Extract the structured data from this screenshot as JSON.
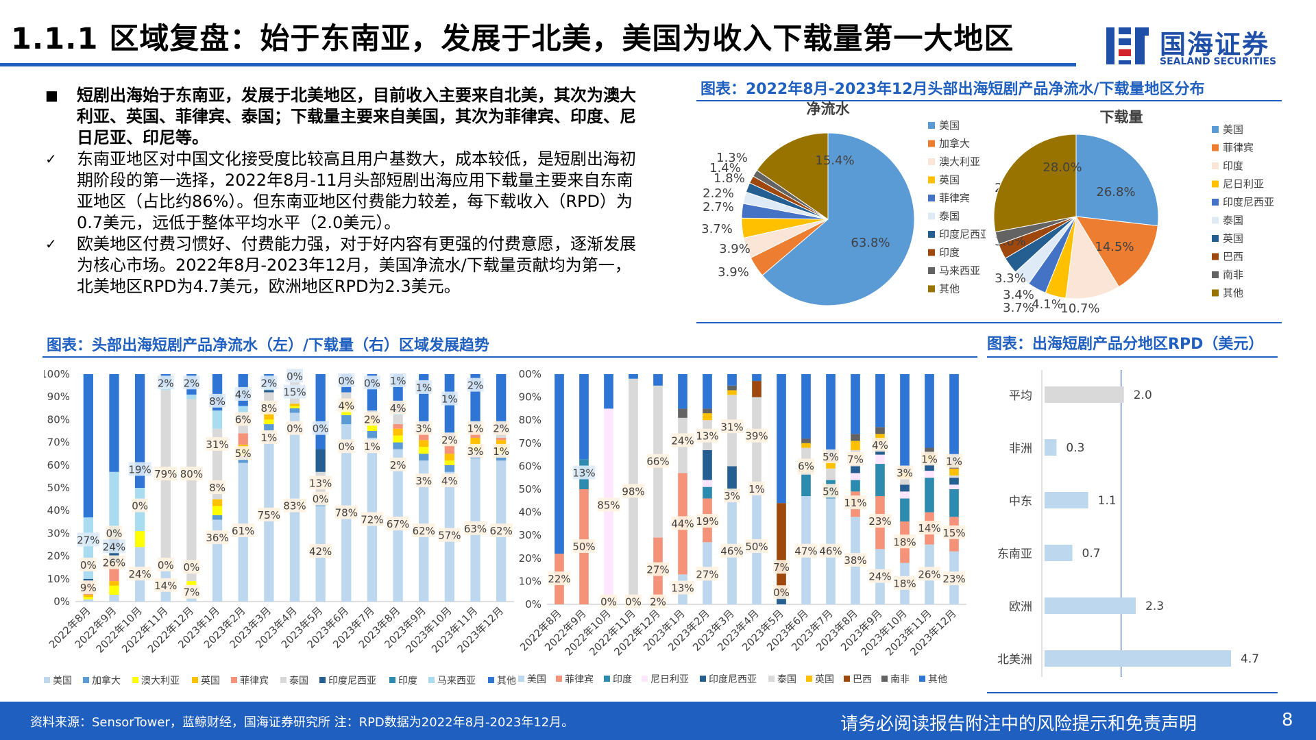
{
  "title": "1.1.1 区域复盘：始于东南亚，发展于北美，美国为收入下载量第一大地区",
  "logo": {
    "cn": "国海证券",
    "en": "SEALAND SECURITIES"
  },
  "bullets": [
    {
      "marker": "■",
      "bold": true,
      "text": "短剧出海始于东南亚，发展于北美地区，目前收入主要来自北美，其次为澳大利亚、英国、菲律宾、泰国；下载量主要来自美国，其次为菲律宾、印度、尼日尼亚、印尼等。"
    },
    {
      "marker": "✓",
      "bold": false,
      "text": "东南亚地区对中国文化接受度比较高且用户基数大，成本较低，是短剧出海初期阶段的第一选择，2022年8月-11月头部短剧出海应用下载量主要来自东南亚地区（占比约86%）。但东南亚地区付费能力较差，每下载收入（RPD）为0.7美元，远低于整体平均水平（2.0美元）。"
    },
    {
      "marker": "✓",
      "bold": false,
      "text": "欧美地区付费习惯好、付费能力强，对于好内容有更强的付费意愿，逐渐发展为核心市场。2022年8月-2023年12月，美国净流水/下载量贡献均为第一，北美地区RPD为4.7美元，欧洲地区RPD为2.3美元。"
    }
  ],
  "pie_section_title": "图表：2022年8月-2023年12月头部出海短剧产品净流水/下载量地区分布",
  "trend_section_title": "图表：头部出海短剧产品净流水（左）/下载量（右）区域发展趋势",
  "rpd_section_title": "图表：出海短剧产品分地区RPD（美元）",
  "footer": {
    "source": "资料来源：SensorTower，蓝鲸财经，国海证券研究所   注：RPD数据为2022年8月-2023年12月。",
    "disclaimer": "请务必阅读报告附注中的风险提示和免责声明",
    "page": "8"
  },
  "chart_data": [
    {
      "type": "pie",
      "title": "净流水",
      "labels": [
        "美国",
        "加拿大",
        "澳大利亚",
        "英国",
        "菲律宾",
        "泰国",
        "印度尼西亚",
        "印度",
        "马来西亚",
        "其他"
      ],
      "values": [
        63.8,
        3.9,
        3.9,
        3.7,
        2.7,
        2.2,
        1.8,
        1.4,
        1.3,
        15.4
      ],
      "colors": [
        "#5B9BD5",
        "#ED7D31",
        "#FBE5D6",
        "#FFC000",
        "#4472C4",
        "#DEEBF7",
        "#255E91",
        "#9E480E",
        "#636363",
        "#997300"
      ],
      "legend": "right"
    },
    {
      "type": "pie",
      "title": "下载量",
      "labels": [
        "美国",
        "菲律宾",
        "印度",
        "尼日利亚",
        "印度尼西亚",
        "泰国",
        "英国",
        "巴西",
        "南非",
        "其他"
      ],
      "values": [
        26.8,
        14.5,
        10.7,
        4.1,
        3.7,
        3.4,
        3.3,
        3.0,
        2.5,
        28.0
      ],
      "colors": [
        "#5B9BD5",
        "#ED7D31",
        "#FBE5D6",
        "#FFC000",
        "#4472C4",
        "#DEEBF7",
        "#255E91",
        "#9E480E",
        "#636363",
        "#997300"
      ],
      "legend": "right"
    },
    {
      "type": "bar",
      "stacked": true,
      "percent": true,
      "categories": [
        "2022年8月",
        "2022年9月",
        "2022年10月",
        "2022年11月",
        "2022年12月",
        "2023年1月",
        "2023年2月",
        "2023年3月",
        "2023年4月",
        "2023年5月",
        "2023年6月",
        "2023年7月",
        "2023年8月",
        "2023年9月",
        "2023年10月",
        "2023年11月",
        "2023年12月"
      ],
      "ylim": [
        0,
        100
      ],
      "yticks": [
        "0%",
        "10%",
        "20%",
        "30%",
        "40%",
        "50%",
        "60%",
        "70%",
        "80%",
        "90%",
        "100%"
      ],
      "legend": "bottom",
      "series": [
        {
          "name": "美国",
          "color": "#BDD7EE",
          "values": [
            1,
            3,
            24,
            14,
            7,
            36,
            61,
            75,
            83,
            42,
            78,
            72,
            67,
            62,
            57,
            63,
            62
          ]
        },
        {
          "name": "加拿大",
          "color": "#5B9BD5",
          "values": [
            0,
            0,
            0,
            0,
            0,
            2,
            3,
            3,
            2,
            2,
            4,
            3,
            3,
            3,
            3,
            3,
            3
          ]
        },
        {
          "name": "澳大利亚",
          "color": "#FFFF00",
          "values": [
            1,
            4,
            7,
            0,
            2,
            4,
            3,
            2,
            1,
            0,
            3,
            3,
            3,
            3,
            2,
            3,
            3
          ]
        },
        {
          "name": "英国",
          "color": "#FFC000",
          "values": [
            1,
            2,
            0,
            0,
            0,
            3,
            2,
            3,
            1,
            0,
            3,
            3,
            3,
            3,
            3,
            3,
            3
          ]
        },
        {
          "name": "菲律宾",
          "color": "#F4937A",
          "values": [
            6,
            8,
            0,
            0,
            0,
            0,
            5,
            1,
            0,
            0,
            0,
            1,
            2,
            3,
            4,
            3,
            1
          ]
        },
        {
          "name": "泰国",
          "color": "#D9D9D9",
          "values": [
            0,
            0,
            0,
            79,
            80,
            31,
            6,
            8,
            15,
            13,
            4,
            2,
            4,
            3,
            2,
            1,
            2
          ]
        },
        {
          "name": "印度尼西亚",
          "color": "#255E91",
          "values": [
            1,
            11,
            0,
            0,
            0,
            0,
            2,
            1,
            0,
            10,
            0,
            0,
            0,
            0,
            0,
            0,
            0
          ]
        },
        {
          "name": "印度",
          "color": "#2E8BB0",
          "values": [
            0,
            5,
            0,
            0,
            0,
            0,
            0,
            0,
            0,
            0,
            0,
            0,
            0,
            0,
            0,
            0,
            0
          ]
        },
        {
          "name": "马来西亚",
          "color": "#A9DCF0",
          "values": [
            27,
            24,
            19,
            2,
            2,
            8,
            4,
            2,
            0,
            0,
            0,
            0,
            1,
            1,
            1,
            2,
            2
          ]
        },
        {
          "name": "其他",
          "color": "#2F75D6",
          "values": [
            63,
            43,
            50,
            5,
            9,
            16,
            14,
            5,
            -2,
            33,
            8,
            16,
            17,
            22,
            28,
            22,
            24
          ]
        }
      ],
      "data_labels": [
        "0%",
        "9%",
        "24%",
        "27%",
        "26%",
        "0%",
        "19%",
        "24%",
        "0%",
        "14%",
        "79%",
        "0%",
        "2%",
        "7%",
        "80%",
        "0%",
        "2%",
        "36%",
        "8%",
        "31%",
        "8%",
        "61%",
        "5%",
        "6%",
        "4%",
        "75%",
        "1%",
        "8%",
        "2%",
        "83%",
        "0%",
        "15%",
        "0%",
        "42%",
        "0%",
        "13%",
        "0%",
        "78%",
        "0%",
        "4%",
        "0%",
        "72%",
        "1%",
        "2%",
        "0%",
        "67%",
        "2%",
        "4%",
        "1%",
        "62%",
        "3%",
        "3%",
        "1%",
        "57%",
        "4%",
        "2%",
        "1%",
        "63%",
        "3%",
        "1%",
        "2%",
        "62%",
        "1%",
        "2%"
      ]
    },
    {
      "type": "bar",
      "stacked": true,
      "percent": true,
      "categories": [
        "2022年8月",
        "2022年9月",
        "2022年10月",
        "2022年11月",
        "2022年12月",
        "2023年1月",
        "2023年2月",
        "2023年3月",
        "2023年4月",
        "2023年5月",
        "2023年6月",
        "2023年7月",
        "2023年8月",
        "2023年9月",
        "2023年10月",
        "2023年11月",
        "2023年12月"
      ],
      "ylim": [
        0,
        100
      ],
      "yticks": [
        "0%",
        "10%",
        "20%",
        "30%",
        "40%",
        "50%",
        "60%",
        "70%",
        "80%",
        "90%",
        "100%"
      ],
      "legend": "bottom",
      "series": [
        {
          "name": "美国",
          "color": "#BDD7EE",
          "values": [
            0,
            0,
            0,
            0,
            2,
            13,
            27,
            46,
            50,
            0,
            47,
            46,
            38,
            24,
            18,
            26,
            23
          ]
        },
        {
          "name": "菲律宾",
          "color": "#F4937A",
          "values": [
            22,
            50,
            0,
            0,
            27,
            44,
            19,
            0,
            0,
            0,
            0,
            0,
            11,
            23,
            18,
            14,
            15
          ]
        },
        {
          "name": "印度",
          "color": "#2E8BB0",
          "values": [
            0,
            13,
            0,
            0,
            0,
            0,
            5,
            0,
            0,
            0,
            15,
            8,
            5,
            14,
            10,
            15,
            12
          ]
        },
        {
          "name": "尼日利亚",
          "color": "#FFE6FF",
          "values": [
            0,
            0,
            85,
            0,
            0,
            0,
            3,
            3,
            1,
            0,
            0,
            0,
            3,
            4,
            3,
            3,
            2
          ]
        },
        {
          "name": "印度尼西亚",
          "color": "#255E91",
          "values": [
            0,
            0,
            0,
            0,
            0,
            0,
            13,
            11,
            0,
            4,
            0,
            0,
            3,
            2,
            3,
            3,
            3
          ]
        },
        {
          "name": "泰国",
          "color": "#D9D9D9",
          "values": [
            0,
            0,
            0,
            98,
            66,
            24,
            13,
            31,
            39,
            0,
            6,
            5,
            7,
            4,
            3,
            1,
            1
          ]
        },
        {
          "name": "英国",
          "color": "#FFC000",
          "values": [
            0,
            0,
            0,
            0,
            0,
            0,
            3,
            2,
            0,
            0,
            2,
            3,
            4,
            3,
            2,
            3,
            3
          ]
        },
        {
          "name": "巴西",
          "color": "#9E480E",
          "values": [
            0,
            0,
            0,
            0,
            0,
            0,
            0,
            0,
            7,
            40,
            0,
            0,
            0,
            0,
            0,
            0,
            0
          ]
        },
        {
          "name": "南非",
          "color": "#636363",
          "values": [
            0,
            0,
            0,
            0,
            0,
            4,
            2,
            2,
            0,
            0,
            2,
            2,
            3,
            3,
            3,
            3,
            3
          ]
        },
        {
          "name": "其他",
          "color": "#2F75D6",
          "values": [
            78,
            37,
            15,
            2,
            5,
            15,
            15,
            5,
            3,
            56,
            28,
            36,
            26,
            23,
            40,
            32,
            38
          ]
        }
      ],
      "data_labels": [
        "22%",
        "50%",
        "13%",
        "0%",
        "85%",
        "0%",
        "98%",
        "2%",
        "27%",
        "66%",
        "13%",
        "44%",
        "24%",
        "27%",
        "19%",
        "13%",
        "46%",
        "3%",
        "31%",
        "50%",
        "1%",
        "39%",
        "0%",
        "7%",
        "47%",
        "0%",
        "6%",
        "46%",
        "5%",
        "5%",
        "38%",
        "11%",
        "7%",
        "24%",
        "23%",
        "4%",
        "18%",
        "18%",
        "3%",
        "26%",
        "14%",
        "1%",
        "23%",
        "15%",
        "1%"
      ]
    },
    {
      "type": "bar",
      "orientation": "horizontal",
      "categories": [
        "平均",
        "非洲",
        "中东",
        "东南亚",
        "欧洲",
        "北美洲"
      ],
      "values": [
        2.0,
        0.3,
        1.1,
        0.7,
        2.3,
        4.7
      ],
      "data_labels": [
        "2.0",
        "0.3",
        "1.1",
        "0.7",
        "2.3",
        "4.7"
      ],
      "colors": {
        "平均": "#D9D9D9",
        "others": "#BDD7EE"
      }
    }
  ]
}
